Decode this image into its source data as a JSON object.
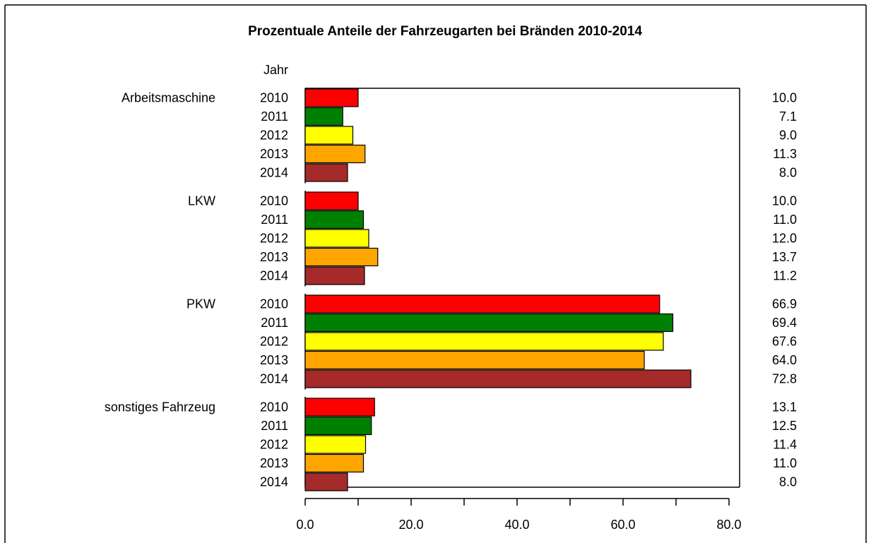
{
  "chart_data": {
    "type": "bar",
    "orientation": "horizontal",
    "title": "Prozentuale Anteile der Fahrzeugarten bei Bränden 2010-2014",
    "series_label": "Jahr",
    "categories": [
      "Arbeitsmaschine",
      "LKW",
      "PKW",
      "sonstiges Fahrzeug"
    ],
    "series": [
      {
        "name": "2010",
        "color": "#ff0000",
        "values": [
          10.0,
          10.0,
          66.9,
          13.1
        ],
        "value_labels": [
          "10.0",
          "10.0",
          "66.9",
          "13.1"
        ]
      },
      {
        "name": "2011",
        "color": "#008000",
        "values": [
          7.1,
          11.0,
          69.4,
          12.5
        ],
        "value_labels": [
          "7.1",
          "11.0",
          "69.4",
          "12.5"
        ]
      },
      {
        "name": "2012",
        "color": "#ffff00",
        "values": [
          9.0,
          12.0,
          67.6,
          11.4
        ],
        "value_labels": [
          "9.0",
          "12.0",
          "67.6",
          "11.4"
        ]
      },
      {
        "name": "2013",
        "color": "#ffa500",
        "values": [
          11.3,
          13.7,
          64.0,
          11.0
        ],
        "value_labels": [
          "11.3",
          "13.7",
          "64.0",
          "11.0"
        ]
      },
      {
        "name": "2014",
        "color": "#a52a2a",
        "values": [
          8.0,
          11.2,
          72.8,
          8.0
        ],
        "value_labels": [
          "8.0",
          "11.2",
          "72.8",
          "8.0"
        ]
      }
    ],
    "xlim": [
      0,
      82
    ],
    "xticks": [
      {
        "value": 0,
        "label": "0.0"
      },
      {
        "value": 20,
        "label": "20.0"
      },
      {
        "value": 40,
        "label": "40.0"
      },
      {
        "value": 60,
        "label": "60.0"
      },
      {
        "value": 80,
        "label": "80.0"
      }
    ],
    "minor_xticks": [
      10,
      30,
      50,
      70
    ]
  }
}
